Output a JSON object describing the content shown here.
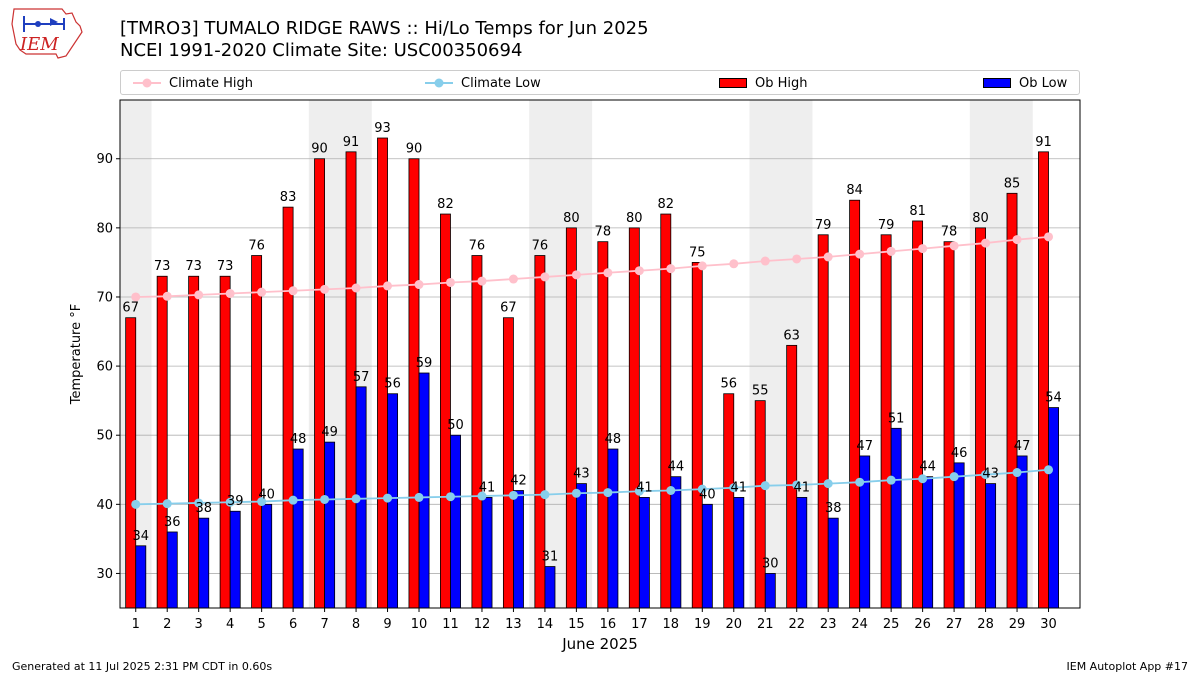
{
  "title_line1": "[TMRO3] TUMALO RIDGE RAWS :: Hi/Lo Temps for Jun 2025",
  "title_line2": "NCEI 1991-2020 Climate Site: USC00350694",
  "logo_text": "IEM",
  "footer_left": "Generated at 11 Jul 2025 2:31 PM CDT in 0.60s",
  "footer_right": "IEM Autoplot App #17",
  "colors": {
    "ob_high": "#ff0000",
    "ob_low": "#0000ff",
    "climate_high": "#ffc0cb",
    "climate_low": "#87ceeb",
    "weekend_band": "#eeeeee",
    "grid": "#b0b0b0"
  },
  "legend": {
    "climate_high": "Climate High",
    "climate_low": "Climate Low",
    "ob_high": "Ob High",
    "ob_low": "Ob Low"
  },
  "chart_data": {
    "type": "bar",
    "xlabel": "June 2025",
    "ylabel": "Temperature °F",
    "ylim": [
      25,
      98.5
    ],
    "yticks": [
      30,
      40,
      50,
      60,
      70,
      80,
      90
    ],
    "grid": "horizontal",
    "legend_placement": "top",
    "categories": [
      "1",
      "2",
      "3",
      "4",
      "5",
      "6",
      "7",
      "8",
      "9",
      "10",
      "11",
      "12",
      "13",
      "14",
      "15",
      "16",
      "17",
      "18",
      "19",
      "20",
      "21",
      "22",
      "23",
      "24",
      "25",
      "26",
      "27",
      "28",
      "29",
      "30"
    ],
    "weekend_bands": [
      [
        1,
        1
      ],
      [
        7,
        8
      ],
      [
        14,
        15
      ],
      [
        21,
        22
      ],
      [
        28,
        29
      ]
    ],
    "series": [
      {
        "name": "Ob High",
        "kind": "bar",
        "values": [
          67,
          73,
          73,
          73,
          76,
          83,
          90,
          91,
          93,
          90,
          82,
          76,
          67,
          76,
          80,
          78,
          80,
          82,
          75,
          56,
          55,
          63,
          79,
          84,
          79,
          81,
          78,
          80,
          85,
          91
        ]
      },
      {
        "name": "Ob Low",
        "kind": "bar",
        "values": [
          34,
          36,
          38,
          39,
          40,
          48,
          49,
          57,
          56,
          59,
          50,
          41,
          42,
          31,
          43,
          48,
          41,
          44,
          40,
          41,
          30,
          41,
          38,
          47,
          51,
          44,
          46,
          43,
          47,
          54
        ]
      },
      {
        "name": "Climate High",
        "kind": "line",
        "values": [
          70.0,
          70.1,
          70.3,
          70.5,
          70.7,
          70.9,
          71.1,
          71.3,
          71.6,
          71.8,
          72.1,
          72.3,
          72.6,
          72.9,
          73.2,
          73.5,
          73.8,
          74.1,
          74.5,
          74.8,
          75.2,
          75.5,
          75.8,
          76.2,
          76.6,
          77.0,
          77.4,
          77.8,
          78.3,
          78.7
        ]
      },
      {
        "name": "Climate Low",
        "kind": "line",
        "values": [
          40.0,
          40.1,
          40.2,
          40.3,
          40.4,
          40.6,
          40.7,
          40.8,
          40.9,
          41.0,
          41.1,
          41.2,
          41.3,
          41.4,
          41.6,
          41.7,
          41.9,
          42.0,
          42.2,
          42.4,
          42.7,
          42.8,
          43.0,
          43.2,
          43.5,
          43.7,
          44.0,
          44.3,
          44.6,
          45.0
        ]
      }
    ]
  }
}
